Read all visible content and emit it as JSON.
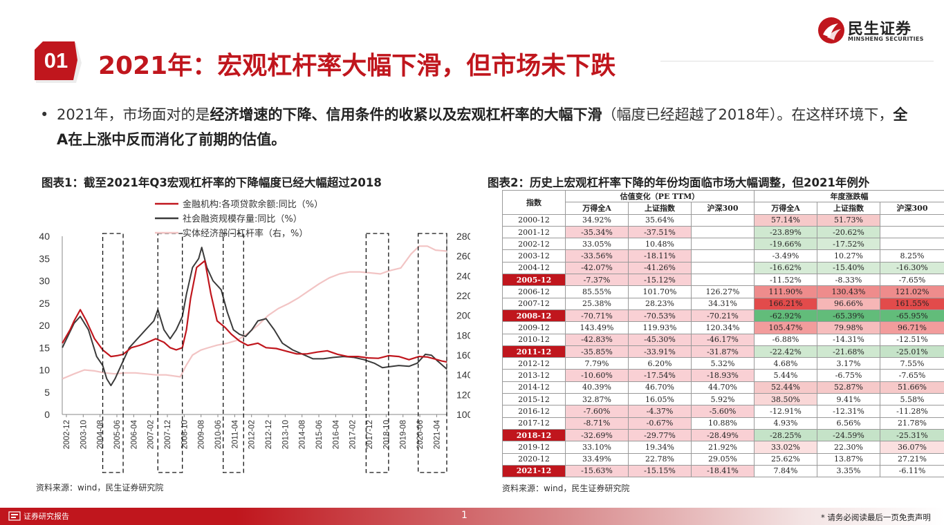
{
  "brand": {
    "name": "民生证券",
    "sub": "MINSHENG SECURITIES",
    "colors": {
      "red": "#C0161D"
    }
  },
  "section": {
    "number": "01",
    "title": "2021年：宏观杠杆率大幅下滑，但市场未下跌"
  },
  "bullet": {
    "dot": "•",
    "p1": "2021年，市场面对的是",
    "b1": "经济增速的下降、信用条件的收紧以及宏观杠杆率的大幅下滑",
    "p2": "（幅度已经超越了2018年）。在这样环境下，",
    "b2": "全A在上涨中反而消化了前期的估值。"
  },
  "fig1": {
    "title": "图表1：截至2021年Q3宏观杠杆率的下降幅度已经大幅超过2018",
    "source": "资料来源：wind，民生证券研究院"
  },
  "fig2": {
    "title": "图表2：历史上宏观杠杆率下降的年份均面临市场大幅调整，但2021年例外",
    "source": "资料来源：wind，民生证券研究院"
  },
  "footer": {
    "left": "证券研究报告",
    "page": "1",
    "disclaimer": "* 请务必阅读最后一页免责声明"
  },
  "chart_data": {
    "type": "line",
    "series": [
      {
        "name": "金融机构:各项贷款余额:同比（%）",
        "axis": "left",
        "color": "#C0161D"
      },
      {
        "name": "社会融资规模存量:同比（%）",
        "axis": "left",
        "color": "#3a3a3a"
      },
      {
        "name": "实体经济部门杠杆率（右，%）",
        "axis": "right",
        "color": "#F2C4C4"
      }
    ],
    "y_left": {
      "min": 0,
      "max": 40,
      "ticks": [
        "0",
        "5",
        "10",
        "15",
        "20",
        "25",
        "30",
        "35",
        "40"
      ]
    },
    "y_right": {
      "min": 100,
      "max": 280,
      "ticks": [
        "100",
        "120",
        "140",
        "160",
        "180",
        "200",
        "220",
        "240",
        "260",
        "280"
      ]
    },
    "x_ticks": [
      "2002-12",
      "2003-10",
      "2004-08",
      "2005-06",
      "2006-04",
      "2007-02",
      "2007-12",
      "2008-10",
      "2009-08",
      "2010-06",
      "2011-04",
      "2012-02",
      "2012-12",
      "2013-10",
      "2014-08",
      "2015-06",
      "2016-04",
      "2017-02",
      "2017-12",
      "2018-10",
      "2019-08",
      "2020-06",
      "2021-04"
    ],
    "x_start": 2002.917,
    "x_end": 2021.75,
    "loans": [
      [
        2002.92,
        16
      ],
      [
        2003.3,
        19
      ],
      [
        2003.5,
        21
      ],
      [
        2003.8,
        23.5
      ],
      [
        2004.1,
        21
      ],
      [
        2004.5,
        17
      ],
      [
        2004.9,
        14.5
      ],
      [
        2005.3,
        13
      ],
      [
        2005.6,
        13.2
      ],
      [
        2005.9,
        13.5
      ],
      [
        2006.3,
        15
      ],
      [
        2006.7,
        15.5
      ],
      [
        2007.0,
        16
      ],
      [
        2007.5,
        17
      ],
      [
        2007.9,
        16.2
      ],
      [
        2008.2,
        15
      ],
      [
        2008.5,
        14.5
      ],
      [
        2008.8,
        15
      ],
      [
        2009.0,
        19
      ],
      [
        2009.2,
        26
      ],
      [
        2009.5,
        33
      ],
      [
        2009.9,
        34.5
      ],
      [
        2010.2,
        27
      ],
      [
        2010.5,
        21
      ],
      [
        2010.9,
        19.5
      ],
      [
        2011.2,
        18
      ],
      [
        2011.6,
        16.5
      ],
      [
        2012.0,
        15.5
      ],
      [
        2012.5,
        16
      ],
      [
        2012.9,
        15
      ],
      [
        2013.4,
        14.8
      ],
      [
        2013.9,
        14.2
      ],
      [
        2014.4,
        13.6
      ],
      [
        2014.9,
        13.6
      ],
      [
        2015.4,
        14
      ],
      [
        2015.9,
        14.3
      ],
      [
        2016.4,
        13.5
      ],
      [
        2016.9,
        13
      ],
      [
        2017.4,
        13
      ],
      [
        2017.9,
        12.7
      ],
      [
        2018.4,
        12.6
      ],
      [
        2018.9,
        13.2
      ],
      [
        2019.4,
        13
      ],
      [
        2019.9,
        12.3
      ],
      [
        2020.4,
        13
      ],
      [
        2020.8,
        12.9
      ],
      [
        2021.2,
        12.4
      ],
      [
        2021.5,
        12
      ],
      [
        2021.75,
        11.8
      ]
    ],
    "tsf": [
      [
        2002.92,
        15
      ],
      [
        2003.5,
        20.5
      ],
      [
        2003.8,
        22
      ],
      [
        2004.2,
        19
      ],
      [
        2004.6,
        13
      ],
      [
        2004.9,
        11
      ],
      [
        2005.1,
        8
      ],
      [
        2005.3,
        6.5
      ],
      [
        2005.5,
        8
      ],
      [
        2005.8,
        11
      ],
      [
        2006.2,
        15
      ],
      [
        2006.6,
        17
      ],
      [
        2007.0,
        19
      ],
      [
        2007.4,
        21
      ],
      [
        2007.6,
        23.5
      ],
      [
        2007.9,
        19
      ],
      [
        2008.2,
        17
      ],
      [
        2008.5,
        19
      ],
      [
        2008.8,
        22
      ],
      [
        2009.0,
        27
      ],
      [
        2009.3,
        33
      ],
      [
        2009.6,
        35
      ],
      [
        2009.75,
        37.5
      ],
      [
        2010.0,
        33
      ],
      [
        2010.3,
        30
      ],
      [
        2010.7,
        28
      ],
      [
        2011.0,
        23
      ],
      [
        2011.3,
        19
      ],
      [
        2011.6,
        18
      ],
      [
        2011.9,
        17.5
      ],
      [
        2012.2,
        19
      ],
      [
        2012.5,
        21
      ],
      [
        2012.9,
        21.5
      ],
      [
        2013.3,
        19
      ],
      [
        2013.7,
        16
      ],
      [
        2014.2,
        14.5
      ],
      [
        2014.7,
        13.5
      ],
      [
        2015.2,
        12.5
      ],
      [
        2015.7,
        12.5
      ],
      [
        2016.2,
        12.8
      ],
      [
        2016.7,
        13
      ],
      [
        2017.2,
        12.8
      ],
      [
        2017.7,
        12.3
      ],
      [
        2018.2,
        11.5
      ],
      [
        2018.6,
        10.5
      ],
      [
        2018.9,
        10.7
      ],
      [
        2019.4,
        11
      ],
      [
        2019.9,
        10.8
      ],
      [
        2020.3,
        11.5
      ],
      [
        2020.7,
        13.5
      ],
      [
        2021.0,
        13.3
      ],
      [
        2021.3,
        12
      ],
      [
        2021.75,
        10.2
      ]
    ],
    "leverage": [
      [
        2002.92,
        136
      ],
      [
        2003.5,
        141
      ],
      [
        2004.0,
        145
      ],
      [
        2004.5,
        144
      ],
      [
        2005.0,
        142
      ],
      [
        2005.5,
        141
      ],
      [
        2006.0,
        142
      ],
      [
        2006.5,
        142
      ],
      [
        2007.0,
        141
      ],
      [
        2007.5,
        140
      ],
      [
        2008.0,
        140
      ],
      [
        2008.7,
        138
      ],
      [
        2009.0,
        150
      ],
      [
        2009.3,
        160
      ],
      [
        2009.7,
        165
      ],
      [
        2010.0,
        167
      ],
      [
        2010.5,
        170
      ],
      [
        2011.0,
        172
      ],
      [
        2011.5,
        175
      ],
      [
        2012.0,
        182
      ],
      [
        2012.5,
        190
      ],
      [
        2013.0,
        200
      ],
      [
        2013.5,
        207
      ],
      [
        2014.0,
        212
      ],
      [
        2014.5,
        218
      ],
      [
        2015.0,
        225
      ],
      [
        2015.5,
        232
      ],
      [
        2016.0,
        238
      ],
      [
        2016.5,
        242
      ],
      [
        2017.0,
        244
      ],
      [
        2017.5,
        244
      ],
      [
        2018.0,
        243
      ],
      [
        2018.5,
        242
      ],
      [
        2018.9,
        245
      ],
      [
        2019.5,
        248
      ],
      [
        2020.0,
        262
      ],
      [
        2020.4,
        270
      ],
      [
        2020.8,
        270
      ],
      [
        2021.2,
        266
      ],
      [
        2021.75,
        265
      ]
    ],
    "highlight_boxes": [
      [
        2004.9,
        2005.9
      ],
      [
        2007.6,
        2008.8
      ],
      [
        2010.8,
        2011.8
      ],
      [
        2017.8,
        2018.9
      ],
      [
        2020.35,
        2021.75
      ]
    ]
  },
  "table": {
    "header1": [
      "指数",
      "估值变化（PE TTM）",
      "年度涨跌幅"
    ],
    "header2": [
      "万得全A",
      "上证指数",
      "沪深300",
      "万得全A",
      "上证指数",
      "沪深300"
    ],
    "rows": [
      {
        "y": "2000-12",
        "v": [
          "34.92%",
          "35.64%",
          "",
          "57.14%",
          "51.73%",
          ""
        ],
        "c": [
          "",
          "",
          "",
          "#F6C9C9",
          "#F6C9C9",
          ""
        ]
      },
      {
        "y": "2001-12",
        "v": [
          "-35.34%",
          "-37.51%",
          "",
          "-23.89%",
          "-20.62%",
          ""
        ],
        "c": [
          "#F9D0D4",
          "#F9D0D4",
          "",
          "#CFE8D0",
          "#CFE8D0",
          ""
        ]
      },
      {
        "y": "2002-12",
        "v": [
          "33.05%",
          "10.48%",
          "",
          "-19.66%",
          "-17.52%",
          ""
        ],
        "c": [
          "",
          "",
          "",
          "#CFE8D0",
          "#D6EBD6",
          ""
        ]
      },
      {
        "y": "2003-12",
        "v": [
          "-33.56%",
          "-18.11%",
          "",
          "-3.49%",
          "10.27%",
          "8.25%"
        ],
        "c": [
          "#F9D0D4",
          "#F9D0D4",
          "",
          "",
          "",
          ""
        ]
      },
      {
        "y": "2004-12",
        "v": [
          "-42.07%",
          "-41.26%",
          "",
          "-16.62%",
          "-15.40%",
          "-16.30%"
        ],
        "c": [
          "#F9D0D4",
          "#F9D0D4",
          "",
          "#D6EBD6",
          "#D6EBD6",
          "#D6EBD6"
        ]
      },
      {
        "y": "2005-12",
        "v": [
          "-7.37%",
          "-15.12%",
          "",
          "-11.52%",
          "-8.33%",
          "-7.65%"
        ],
        "c": [
          "#F9D0D4",
          "#F9D0D4",
          "",
          "",
          "",
          ""
        ],
        "hl": true
      },
      {
        "y": "2006-12",
        "v": [
          "85.55%",
          "101.70%",
          "126.27%",
          "111.90%",
          "130.43%",
          "121.02%"
        ],
        "c": [
          "",
          "",
          "",
          "#EE8C8C",
          "#EE8C8C",
          "#EE8C8C"
        ]
      },
      {
        "y": "2007-12",
        "v": [
          "25.38%",
          "28.23%",
          "34.31%",
          "166.21%",
          "96.66%",
          "161.55%"
        ],
        "c": [
          "",
          "",
          "",
          "#E24B4B",
          "#F6B6B6",
          "#E24B4B"
        ]
      },
      {
        "y": "2008-12",
        "v": [
          "-70.71%",
          "-70.53%",
          "-70.21%",
          "-62.92%",
          "-65.39%",
          "-65.95%"
        ],
        "c": [
          "#F9D0D4",
          "#F9D0D4",
          "#F9D0D4",
          "#62BC7A",
          "#62BC7A",
          "#62BC7A"
        ],
        "hl": true
      },
      {
        "y": "2009-12",
        "v": [
          "143.49%",
          "119.93%",
          "120.34%",
          "105.47%",
          "79.98%",
          "96.71%"
        ],
        "c": [
          "",
          "",
          "",
          "#F29C9C",
          "#F6BDBD",
          "#F29C9C"
        ]
      },
      {
        "y": "2010-12",
        "v": [
          "-42.83%",
          "-45.30%",
          "-46.17%",
          "-6.88%",
          "-14.31%",
          "-12.51%"
        ],
        "c": [
          "#F9D0D4",
          "#F9D0D4",
          "#F9D0D4",
          "",
          "",
          ""
        ]
      },
      {
        "y": "2011-12",
        "v": [
          "-35.85%",
          "-33.91%",
          "-31.87%",
          "-22.42%",
          "-21.68%",
          "-25.01%"
        ],
        "c": [
          "#F9D0D4",
          "#F9D0D4",
          "#F9D0D4",
          "#CFE8D0",
          "#CFE8D0",
          "#C5E3C8"
        ],
        "hl": true
      },
      {
        "y": "2012-12",
        "v": [
          "7.79%",
          "6.20%",
          "5.32%",
          "4.68%",
          "3.17%",
          "7.55%"
        ],
        "c": [
          "",
          "",
          "",
          "",
          "",
          ""
        ]
      },
      {
        "y": "2013-12",
        "v": [
          "-10.60%",
          "-17.54%",
          "-18.93%",
          "5.44%",
          "-6.75%",
          "-7.65%"
        ],
        "c": [
          "#F9D0D4",
          "#F9D0D4",
          "#F9D0D4",
          "",
          "",
          ""
        ]
      },
      {
        "y": "2014-12",
        "v": [
          "40.39%",
          "46.70%",
          "44.70%",
          "52.44%",
          "52.87%",
          "51.66%"
        ],
        "c": [
          "",
          "",
          "",
          "#F6C9C9",
          "#F6C9C9",
          "#F6C9C9"
        ]
      },
      {
        "y": "2015-12",
        "v": [
          "32.87%",
          "16.05%",
          "5.92%",
          "38.50%",
          "9.41%",
          "5.58%"
        ],
        "c": [
          "",
          "",
          "",
          "#F9D7D7",
          "",
          ""
        ]
      },
      {
        "y": "2016-12",
        "v": [
          "-7.60%",
          "-4.37%",
          "-5.60%",
          "-12.91%",
          "-12.31%",
          "-11.28%"
        ],
        "c": [
          "#F9D0D4",
          "#F9D0D4",
          "#F9D0D4",
          "",
          "",
          ""
        ]
      },
      {
        "y": "2017-12",
        "v": [
          "-8.71%",
          "-0.67%",
          "10.88%",
          "4.93%",
          "6.56%",
          "21.78%"
        ],
        "c": [
          "#F9D0D4",
          "#F9D0D4",
          "",
          "",
          "",
          ""
        ]
      },
      {
        "y": "2018-12",
        "v": [
          "-32.69%",
          "-29.77%",
          "-28.49%",
          "-28.25%",
          "-24.59%",
          "-25.31%"
        ],
        "c": [
          "#F9D0D4",
          "#F9D0D4",
          "#F9D0D4",
          "#C5E3C8",
          "#C5E3C8",
          "#C5E3C8"
        ],
        "hl": true
      },
      {
        "y": "2019-12",
        "v": [
          "33.10%",
          "19.34%",
          "21.92%",
          "33.02%",
          "22.30%",
          "36.07%"
        ],
        "c": [
          "",
          "",
          "",
          "#FBE0E0",
          "",
          "#FBE0E0"
        ]
      },
      {
        "y": "2020-12",
        "v": [
          "33.49%",
          "22.78%",
          "29.05%",
          "25.62%",
          "13.87%",
          "27.21%"
        ],
        "c": [
          "",
          "",
          "",
          "",
          "",
          ""
        ]
      },
      {
        "y": "2021-12",
        "v": [
          "-15.63%",
          "-15.15%",
          "-18.41%",
          "7.84%",
          "3.35%",
          "-6.11%"
        ],
        "c": [
          "#F9D0D4",
          "#F9D0D4",
          "#F9D0D4",
          "",
          "",
          ""
        ],
        "hl": true
      }
    ]
  }
}
